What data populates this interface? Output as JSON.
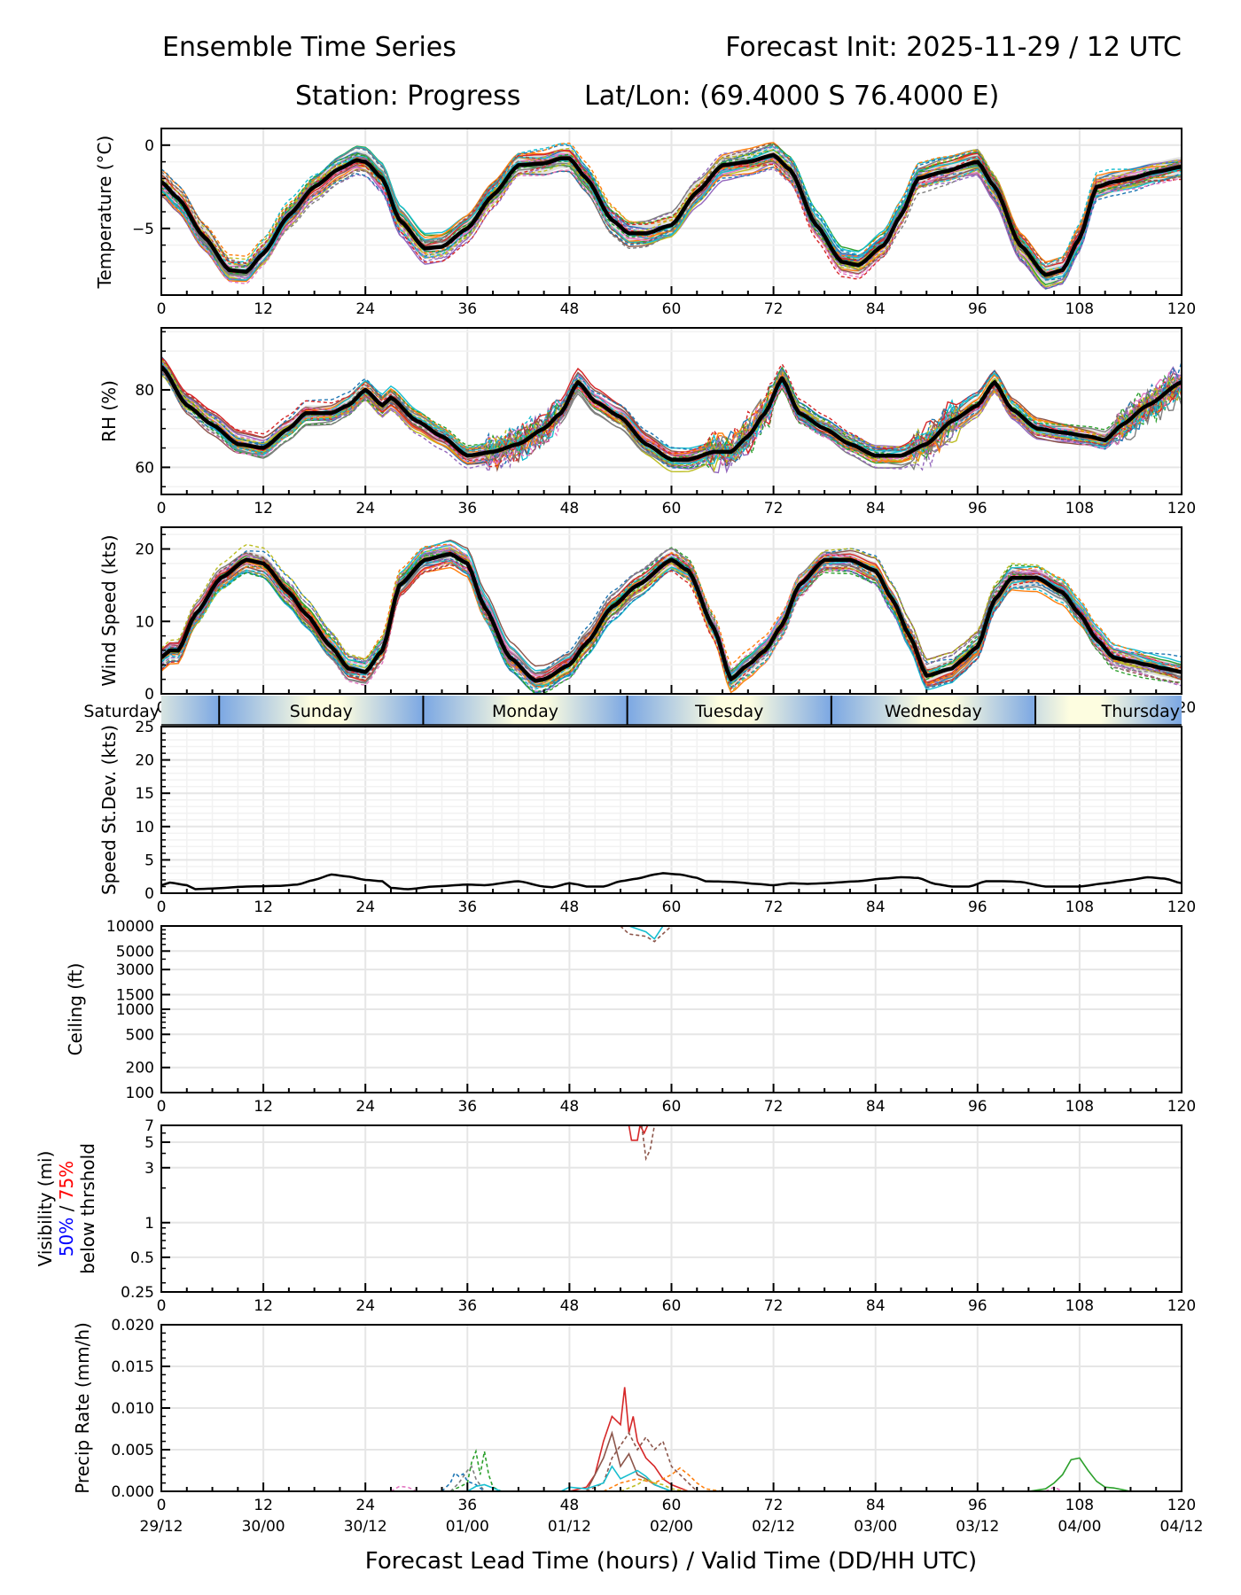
{
  "header": {
    "title_left": "Ensemble Time Series",
    "title_right": "Forecast Init: 2025-11-29 / 12 UTC",
    "station": "Station: Progress",
    "latlon": "Lat/Lon: (69.4000 S 76.4000 E)"
  },
  "xaxis": {
    "range": [
      0,
      120
    ],
    "ticks": [
      0,
      12,
      24,
      36,
      48,
      60,
      72,
      84,
      96,
      108,
      120
    ],
    "tick_labels": [
      "0",
      "12",
      "24",
      "36",
      "48",
      "60",
      "72",
      "84",
      "96",
      "108",
      "120"
    ],
    "valid_time_labels": [
      "29/12",
      "30/00",
      "30/12",
      "01/00",
      "01/12",
      "02/00",
      "02/12",
      "03/00",
      "03/12",
      "04/00",
      "04/12"
    ],
    "xlabel": "Forecast Lead Time (hours) / Valid Time (DD/HH UTC)"
  },
  "day_bar": {
    "days": [
      {
        "label": "Saturday",
        "start": 0,
        "end": 6.8
      },
      {
        "label": "Sunday",
        "start": 6.8,
        "end": 30.8
      },
      {
        "label": "Monday",
        "start": 30.8,
        "end": 54.8
      },
      {
        "label": "Tuesday",
        "start": 54.8,
        "end": 78.8
      },
      {
        "label": "Wednesday",
        "start": 78.8,
        "end": 102.8
      },
      {
        "label": "Thursday",
        "start": 102.8,
        "end": 120
      }
    ],
    "colors": {
      "night": "#7ba7e3",
      "day": "#fdfde0"
    }
  },
  "colors": {
    "mean": "#000000",
    "spread": "#d9d9d9",
    "grid": "#e6e6e6",
    "members": [
      "#1f77b4",
      "#ff7f0e",
      "#2ca02c",
      "#d62728",
      "#9467bd",
      "#8c564b",
      "#e377c2",
      "#7f7f7f",
      "#bcbd22",
      "#17becf"
    ],
    "label_50": "#0000ff",
    "label_75": "#ff0000"
  },
  "chart_data": [
    {
      "id": "temperature",
      "type": "line",
      "ylabel": "Temperature (°C)",
      "ylim": [
        -9,
        1
      ],
      "yticks": [
        0,
        -5
      ],
      "ytick_labels": [
        "0",
        "−5"
      ],
      "grid": true,
      "mean": {
        "x": [
          0,
          2,
          5,
          8,
          10,
          12,
          15,
          18,
          21,
          23,
          24,
          26,
          28,
          31,
          33,
          36,
          39,
          42,
          45,
          47,
          48,
          50,
          53,
          55,
          57,
          60,
          63,
          66,
          69,
          72,
          74,
          77,
          80,
          82,
          85,
          87,
          89,
          92,
          96,
          98,
          101,
          104,
          106,
          108,
          110,
          112,
          114,
          117,
          120
        ],
        "y": [
          -2.2,
          -3.2,
          -5.5,
          -7.5,
          -7.6,
          -6.5,
          -4.2,
          -2.5,
          -1.4,
          -0.9,
          -1.0,
          -2.0,
          -4.5,
          -6.2,
          -6.1,
          -5.0,
          -3.0,
          -1.2,
          -1.1,
          -0.8,
          -0.8,
          -2.0,
          -4.5,
          -5.3,
          -5.3,
          -4.8,
          -2.8,
          -1.2,
          -1.0,
          -0.6,
          -1.5,
          -4.8,
          -7.0,
          -7.2,
          -6.0,
          -4.2,
          -2.0,
          -1.6,
          -1.0,
          -2.5,
          -6.0,
          -7.8,
          -7.5,
          -5.6,
          -2.5,
          -2.2,
          -2.0,
          -1.6,
          -1.3
        ]
      },
      "spread_width": 0.6
    },
    {
      "id": "rh",
      "type": "line",
      "ylabel": "RH (%)",
      "ylim": [
        53,
        96
      ],
      "yticks": [
        60,
        80
      ],
      "ytick_labels": [
        "60",
        "80"
      ],
      "grid": true,
      "mean": {
        "x": [
          0,
          3,
          6,
          9,
          12,
          15,
          17,
          20,
          22,
          24,
          26,
          27,
          30,
          33,
          36,
          39,
          42,
          45,
          47,
          49,
          51,
          54,
          57,
          60,
          62,
          65,
          67,
          69,
          71,
          73,
          75,
          78,
          81,
          84,
          87,
          90,
          93,
          96,
          98,
          100,
          103,
          106,
          109,
          111,
          113,
          116,
          120
        ],
        "y": [
          86,
          76,
          71,
          66,
          65,
          70,
          74,
          74,
          76,
          80,
          76,
          78,
          72,
          68,
          63,
          64,
          66,
          70,
          74,
          82,
          77,
          73,
          66,
          62,
          62,
          64,
          64,
          68,
          74,
          83,
          74,
          70,
          66,
          63,
          63,
          66,
          72,
          76,
          82,
          75,
          70,
          69,
          68,
          67,
          71,
          76,
          82
        ]
      },
      "spread_width": 2.0
    },
    {
      "id": "wind_speed",
      "type": "line",
      "ylabel": "Wind Speed (kts)",
      "ylim": [
        0,
        23
      ],
      "yticks": [
        0,
        10,
        20
      ],
      "ytick_labels": [
        "0",
        "10",
        "20"
      ],
      "grid": true,
      "mean": {
        "x": [
          0,
          1,
          2,
          4,
          7,
          10,
          12,
          15,
          17,
          20,
          22,
          24,
          26,
          28,
          31,
          34,
          36,
          38,
          41,
          44,
          45,
          48,
          50,
          53,
          56,
          60,
          62,
          65,
          67,
          69,
          71,
          73,
          75,
          78,
          81,
          84,
          86,
          88,
          90,
          93,
          94,
          96,
          98,
          100,
          103,
          106,
          108,
          110,
          112,
          114,
          116,
          118,
          120
        ],
        "y": [
          5,
          6,
          6,
          11,
          16,
          18.5,
          18,
          14,
          11,
          6.5,
          3.5,
          3,
          6,
          15,
          18.5,
          19.3,
          18,
          12,
          5,
          1.8,
          2,
          4,
          7,
          12,
          15,
          18.5,
          17,
          9,
          2,
          4,
          6,
          9.5,
          15,
          18.5,
          18.5,
          17,
          13,
          8,
          2.5,
          3.5,
          4.5,
          6.5,
          13,
          16,
          16,
          14,
          11,
          7.5,
          5,
          4.5,
          4,
          3.5,
          3
        ]
      },
      "spread_width": 1.2
    },
    {
      "id": "speed_stdev",
      "type": "line",
      "ylabel": "Speed St.Dev. (kts)",
      "ylim": [
        0,
        25
      ],
      "yticks": [
        0,
        5,
        10,
        15,
        20,
        25
      ],
      "ytick_labels": [
        "0",
        "5",
        "10",
        "15",
        "20",
        "25"
      ],
      "grid": true,
      "series": {
        "x": [
          0,
          1,
          3,
          4,
          6,
          10,
          14,
          16,
          18,
          20,
          22,
          24,
          26,
          27,
          29,
          32,
          36,
          38,
          42,
          45,
          46,
          48,
          49,
          50,
          52,
          54,
          56,
          58,
          59,
          61,
          63,
          64,
          67,
          70,
          72,
          74,
          76,
          78,
          82,
          85,
          87,
          89,
          91,
          93,
          95,
          97,
          99,
          101,
          104,
          108,
          111,
          114,
          116,
          118,
          120
        ],
        "y": [
          1.2,
          1.6,
          1.2,
          0.6,
          0.7,
          1.0,
          1.1,
          1.3,
          2.0,
          2.8,
          2.5,
          2.0,
          1.8,
          0.8,
          0.6,
          1.0,
          1.3,
          1.2,
          1.8,
          1.0,
          0.9,
          1.5,
          1.3,
          1.0,
          1.0,
          1.8,
          2.2,
          2.8,
          3.0,
          2.8,
          2.3,
          1.8,
          1.7,
          1.4,
          1.2,
          1.5,
          1.4,
          1.5,
          1.8,
          2.2,
          2.4,
          2.3,
          1.4,
          1.0,
          1.0,
          1.8,
          1.8,
          1.7,
          1.0,
          1.0,
          1.5,
          2.0,
          2.4,
          2.2,
          1.5
        ]
      }
    },
    {
      "id": "ceiling",
      "type": "line",
      "ylabel": "Ceiling (ft)",
      "yscale": "log",
      "ylim": [
        100,
        10000
      ],
      "yticks": [
        100,
        200,
        500,
        1000,
        1500,
        3000,
        5000,
        10000
      ],
      "ytick_labels": [
        "100",
        "200",
        "500",
        "1000",
        "1500",
        "3000",
        "5000",
        "10000"
      ],
      "grid": true,
      "members": [
        {
          "color": "#17becf",
          "dashed": false,
          "x": [
            55,
            57,
            58,
            59
          ],
          "y": [
            10000,
            8500,
            7000,
            10000
          ]
        },
        {
          "color": "#8c564b",
          "dashed": true,
          "x": [
            54,
            55,
            57,
            58,
            60
          ],
          "y": [
            10000,
            8000,
            7500,
            6500,
            10000
          ]
        }
      ]
    },
    {
      "id": "visibility",
      "type": "line",
      "ylabel": "Visibility (mi)",
      "ylabel_50": "50%",
      "ylabel_sep": " / ",
      "ylabel_75": "75%",
      "ylabel_3": "below thrshold",
      "yscale": "log",
      "ylim": [
        0.25,
        7
      ],
      "yticks": [
        0.25,
        0.5,
        1,
        3,
        5,
        7
      ],
      "ytick_labels": [
        "0.25",
        "0.5",
        "1",
        "3",
        "5",
        "7"
      ],
      "grid": true,
      "members": [
        {
          "color": "#d62728",
          "dashed": false,
          "x": [
            55.0,
            55.3,
            56.0,
            56.3,
            56.8,
            57.2
          ],
          "y": [
            7,
            5.2,
            5.2,
            7,
            6.0,
            7
          ]
        },
        {
          "color": "#8c564b",
          "dashed": true,
          "x": [
            56.5,
            57.0,
            57.5,
            58.0
          ],
          "y": [
            7,
            3.6,
            4.3,
            7
          ]
        }
      ]
    },
    {
      "id": "precip",
      "type": "line",
      "ylabel": "Precip Rate (mm/h)",
      "ylim": [
        0,
        0.02
      ],
      "yticks": [
        0,
        0.005,
        0.01,
        0.015,
        0.02
      ],
      "ytick_labels": [
        "0.000",
        "0.005",
        "0.010",
        "0.015",
        "0.020"
      ],
      "grid": true,
      "members": [
        {
          "color": "#d62728",
          "dashed": false,
          "x": [
            48,
            50,
            51,
            52,
            53,
            54,
            54.5,
            55,
            55.5,
            56,
            57,
            58,
            59,
            60,
            62
          ],
          "y": [
            0,
            0.0005,
            0.002,
            0.006,
            0.009,
            0.008,
            0.0125,
            0.007,
            0.009,
            0.006,
            0.004,
            0.003,
            0.0015,
            0.0008,
            0
          ]
        },
        {
          "color": "#8c564b",
          "dashed": true,
          "x": [
            50,
            52,
            53,
            55,
            56,
            57,
            58,
            59,
            60,
            61,
            63
          ],
          "y": [
            0,
            0.001,
            0.004,
            0.007,
            0.005,
            0.0065,
            0.005,
            0.006,
            0.003,
            0.002,
            0
          ]
        },
        {
          "color": "#8c564b",
          "dashed": false,
          "x": [
            50,
            52,
            53,
            54,
            55,
            56,
            57,
            58,
            60
          ],
          "y": [
            0,
            0.004,
            0.007,
            0.003,
            0.0045,
            0.002,
            0.0015,
            0.0008,
            0
          ]
        },
        {
          "color": "#17becf",
          "dashed": false,
          "x": [
            47,
            48,
            50,
            52,
            53,
            54,
            55,
            56,
            57,
            58,
            60
          ],
          "y": [
            0,
            0.0005,
            0.0003,
            0.001,
            0.003,
            0.0015,
            0.002,
            0.0025,
            0.0018,
            0.0008,
            0
          ]
        },
        {
          "color": "#ff7f0e",
          "dashed": true,
          "x": [
            52,
            54,
            56,
            58,
            60,
            61,
            62,
            63,
            64,
            66
          ],
          "y": [
            0,
            0.001,
            0.0015,
            0.001,
            0.002,
            0.0028,
            0.002,
            0.001,
            0.0003,
            0
          ]
        },
        {
          "color": "#bcbd22",
          "dashed": true,
          "x": [
            54,
            56,
            57,
            58,
            59,
            60,
            62
          ],
          "y": [
            0,
            0.0008,
            0.0015,
            0.001,
            0.0008,
            0.0003,
            0
          ]
        },
        {
          "color": "#2ca02c",
          "dashed": true,
          "x": [
            34,
            36,
            36.5,
            37,
            37.5,
            38,
            38.5,
            39,
            40
          ],
          "y": [
            0,
            0.001,
            0.0035,
            0.0048,
            0.002,
            0.0048,
            0.002,
            0.0005,
            0
          ]
        },
        {
          "color": "#7f7f7f",
          "dashed": true,
          "x": [
            34,
            35,
            36,
            36.5,
            37,
            38
          ],
          "y": [
            0,
            0.001,
            0.0025,
            0.003,
            0.0015,
            0
          ]
        },
        {
          "color": "#1f77b4",
          "dashed": true,
          "x": [
            33,
            34,
            34.5,
            35,
            35.5,
            36,
            37,
            38
          ],
          "y": [
            0,
            0.001,
            0.0022,
            0.0018,
            0.0021,
            0.0012,
            0.0008,
            0
          ]
        },
        {
          "color": "#17becf",
          "dashed": false,
          "x": [
            36,
            37,
            38,
            39,
            40
          ],
          "y": [
            0,
            0.0006,
            0.0008,
            0.0004,
            0
          ]
        },
        {
          "color": "#e377c2",
          "dashed": true,
          "x": [
            27,
            28,
            29,
            30
          ],
          "y": [
            0,
            0.0006,
            0.0005,
            0
          ]
        },
        {
          "color": "#2ca02c",
          "dashed": false,
          "x": [
            102,
            104,
            105,
            106,
            107,
            108,
            109,
            110,
            111,
            112,
            114
          ],
          "y": [
            0,
            0.0003,
            0.001,
            0.002,
            0.0038,
            0.004,
            0.0025,
            0.0012,
            0.0005,
            0.0004,
            0
          ]
        },
        {
          "color": "#e377c2",
          "dashed": true,
          "x": [
            104,
            105,
            106
          ],
          "y": [
            0,
            0.0005,
            0
          ]
        }
      ]
    }
  ]
}
